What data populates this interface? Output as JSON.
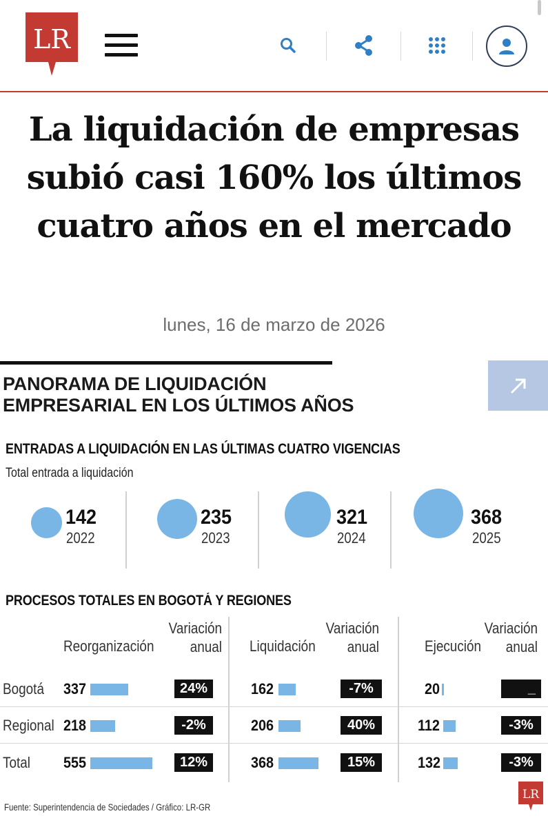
{
  "header": {
    "logo_text": "LR",
    "brand_color": "#c23a32",
    "icons": [
      "menu-icon",
      "search-icon",
      "share-icon",
      "apps-grid-icon",
      "user-icon"
    ]
  },
  "article": {
    "title": "La liquidación de empresas subió casi 160% los últimos cuatro años en el mercado",
    "date": "lunes, 16 de marzo de 2026"
  },
  "infographic": {
    "title_line1": "PANORAMA DE LIQUIDACIÓN",
    "title_line2": "EMPRESARIAL EN LOS ÚLTIMOS AÑOS",
    "section1_title": "ENTRADAS A LIQUIDACIÓN EN LAS ÚLTIMAS CUATRO VIGENCIAS",
    "section1_sub": "Total entrada a liquidación",
    "entries": [
      {
        "value": "142",
        "year": "2022"
      },
      {
        "value": "235",
        "year": "2023"
      },
      {
        "value": "321",
        "year": "2024"
      },
      {
        "value": "368",
        "year": "2025"
      }
    ],
    "section2_title": "PROCESOS TOTALES EN BOGOTÁ Y REGIONES",
    "columns": {
      "reorganizacion": "Reorganización",
      "liquidacion": "Liquidación",
      "ejecucion": "Ejecución",
      "variacion_l1": "Variación",
      "variacion_l2": "anual"
    },
    "rows": [
      {
        "label": "Bogotá",
        "reorg": "337",
        "reorg_var": "24%",
        "liq": "162",
        "liq_var": "-7%",
        "ejec": "20",
        "ejec_var": "_"
      },
      {
        "label": "Regional",
        "reorg": "218",
        "reorg_var": "-2%",
        "liq": "206",
        "liq_var": "40%",
        "ejec": "112",
        "ejec_var": "-3%"
      },
      {
        "label": "Total",
        "reorg": "555",
        "reorg_var": "12%",
        "liq": "368",
        "liq_var": "15%",
        "ejec": "132",
        "ejec_var": "-3%"
      }
    ],
    "source": "Fuente: Superintendencia de Sociedades / Gráfico: LR-GR",
    "mini_logo_text": "LR",
    "bubble_color": "#79b6e6"
  }
}
